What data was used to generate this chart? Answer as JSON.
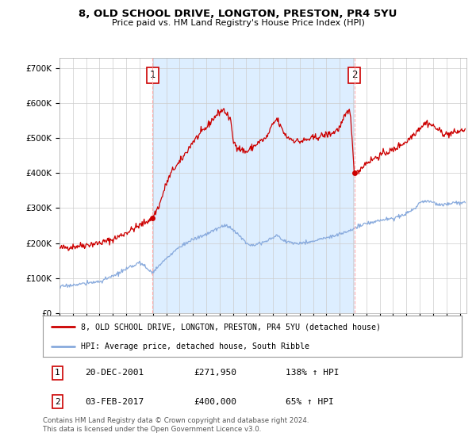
{
  "title": "8, OLD SCHOOL DRIVE, LONGTON, PRESTON, PR4 5YU",
  "subtitle": "Price paid vs. HM Land Registry's House Price Index (HPI)",
  "ylim": [
    0,
    730000
  ],
  "yticks": [
    0,
    100000,
    200000,
    300000,
    400000,
    500000,
    600000,
    700000
  ],
  "background_color": "#ffffff",
  "plot_bg_color": "#ffffff",
  "plot_band_color": "#ddeeff",
  "grid_color": "#cccccc",
  "sale1_date_num": 2001.97,
  "sale1_price": 271950,
  "sale1_date_str": "20-DEC-2001",
  "sale1_hpi_pct": "138%",
  "sale2_date_num": 2017.09,
  "sale2_price": 400000,
  "sale2_date_str": "03-FEB-2017",
  "sale2_hpi_pct": "65%",
  "legend_house": "8, OLD SCHOOL DRIVE, LONGTON, PRESTON, PR4 5YU (detached house)",
  "legend_hpi": "HPI: Average price, detached house, South Ribble",
  "footnote": "Contains HM Land Registry data © Crown copyright and database right 2024.\nThis data is licensed under the Open Government Licence v3.0.",
  "line_color_house": "#cc0000",
  "line_color_hpi": "#88aadd",
  "vline_color": "#ffaaaa",
  "xmin": 1995.0,
  "xmax": 2025.5
}
